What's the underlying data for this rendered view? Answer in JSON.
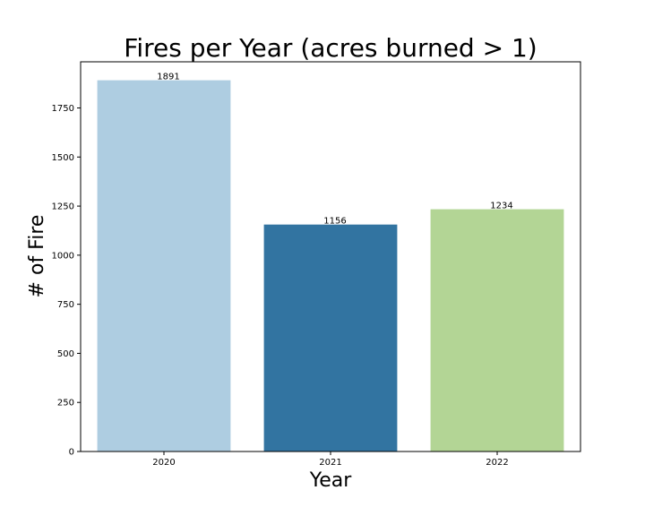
{
  "chart_data": {
    "type": "bar",
    "title": "Fires per Year (acres burned > 1)",
    "xlabel": "Year",
    "ylabel": "# of Fire",
    "categories": [
      "2020",
      "2021",
      "2022"
    ],
    "values": [
      1891,
      1156,
      1234
    ],
    "data_labels": [
      "1891",
      "1156",
      "1234"
    ],
    "colors": [
      "#aecde1",
      "#3274a1",
      "#b3d595"
    ],
    "ylim": [
      0,
      1985
    ],
    "yticks": [
      0,
      250,
      500,
      750,
      1000,
      1250,
      1500,
      1750
    ],
    "ytick_labels": [
      "0",
      "250",
      "500",
      "750",
      "1000",
      "1250",
      "1500",
      "1750"
    ],
    "grid": false,
    "legend": null
  }
}
